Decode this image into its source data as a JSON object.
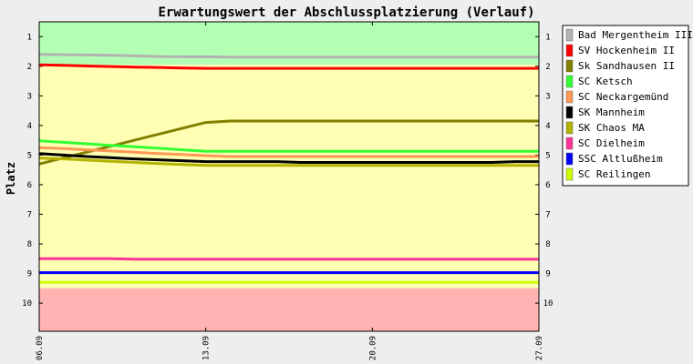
{
  "chart_data": {
    "type": "line",
    "title": "Erwartungswert der Abschlussplatzierung (Verlauf)",
    "ylabel": "Platz",
    "xlabel": "",
    "x_ticks": [
      "06.09",
      "13.09",
      "20.09",
      "27.09"
    ],
    "x": [
      0,
      1,
      2,
      3,
      4,
      5,
      6,
      7,
      8,
      9,
      10,
      11,
      12,
      13,
      14,
      15,
      16,
      17,
      18,
      19,
      20,
      21
    ],
    "y_ticks": [
      1,
      2,
      3,
      4,
      5,
      6,
      7,
      8,
      9,
      10
    ],
    "ylim": [
      0.5,
      10.95
    ],
    "y_inverted": true,
    "bands": [
      {
        "from": 0.5,
        "to": 1.95,
        "color": "#b3ffb3"
      },
      {
        "from": 1.95,
        "to": 9.5,
        "color": "#ffffb3"
      },
      {
        "from": 9.5,
        "to": 10.95,
        "color": "#ffb3b3"
      }
    ],
    "legend_position": "right",
    "series": [
      {
        "name": "Bad Mergentheim III",
        "color": "#b3b3b3",
        "values": [
          1.6,
          1.61,
          1.62,
          1.63,
          1.65,
          1.67,
          1.68,
          1.68,
          1.69,
          1.69,
          1.69,
          1.69,
          1.69,
          1.69,
          1.69,
          1.69,
          1.69,
          1.69,
          1.69,
          1.69,
          1.69,
          1.69
        ]
      },
      {
        "name": "SV Hockenheim II",
        "color": "#ff0000",
        "values": [
          1.95,
          1.97,
          1.99,
          2.01,
          2.03,
          2.04,
          2.06,
          2.07,
          2.07,
          2.07,
          2.07,
          2.07,
          2.07,
          2.07,
          2.07,
          2.07,
          2.07,
          2.07,
          2.07,
          2.07,
          2.07,
          2.07
        ]
      },
      {
        "name": "Sk Sandhausen II",
        "color": "#808000",
        "values": [
          5.3,
          5.1,
          4.9,
          4.7,
          4.5,
          4.3,
          4.1,
          3.9,
          3.85,
          3.85,
          3.85,
          3.85,
          3.85,
          3.85,
          3.85,
          3.85,
          3.85,
          3.85,
          3.85,
          3.85,
          3.85,
          3.85
        ]
      },
      {
        "name": "SC Ketsch",
        "color": "#33ff33",
        "values": [
          4.52,
          4.57,
          4.62,
          4.67,
          4.72,
          4.77,
          4.82,
          4.87,
          4.87,
          4.87,
          4.87,
          4.87,
          4.87,
          4.87,
          4.87,
          4.87,
          4.87,
          4.87,
          4.87,
          4.87,
          4.87,
          4.87
        ]
      },
      {
        "name": "SC Neckargemünd",
        "color": "#ff9955",
        "values": [
          4.75,
          4.78,
          4.82,
          4.86,
          4.9,
          4.95,
          4.98,
          5.02,
          5.05,
          5.05,
          5.05,
          5.05,
          5.05,
          5.05,
          5.05,
          5.05,
          5.05,
          5.05,
          5.05,
          5.05,
          5.05,
          5.05
        ]
      },
      {
        "name": "SK Mannheim",
        "color": "#000000",
        "values": [
          4.95,
          5.0,
          5.05,
          5.09,
          5.13,
          5.16,
          5.19,
          5.22,
          5.22,
          5.22,
          5.22,
          5.25,
          5.25,
          5.25,
          5.25,
          5.25,
          5.25,
          5.25,
          5.25,
          5.25,
          5.22,
          5.22
        ]
      },
      {
        "name": "SK Chaos MA",
        "color": "#b3b300",
        "values": [
          5.1,
          5.13,
          5.17,
          5.21,
          5.25,
          5.29,
          5.32,
          5.35,
          5.35,
          5.35,
          5.35,
          5.35,
          5.35,
          5.35,
          5.35,
          5.35,
          5.35,
          5.35,
          5.35,
          5.35,
          5.35,
          5.35
        ]
      },
      {
        "name": "SC Dielheim",
        "color": "#ff3399",
        "values": [
          8.5,
          8.5,
          8.5,
          8.5,
          8.52,
          8.52,
          8.52,
          8.52,
          8.52,
          8.52,
          8.52,
          8.52,
          8.52,
          8.52,
          8.52,
          8.52,
          8.52,
          8.52,
          8.52,
          8.52,
          8.52,
          8.52
        ]
      },
      {
        "name": "SSC Altlußheim",
        "color": "#0000ff",
        "values": [
          8.97,
          8.97,
          8.97,
          8.97,
          8.97,
          8.97,
          8.97,
          8.97,
          8.97,
          8.97,
          8.97,
          8.97,
          8.97,
          8.97,
          8.97,
          8.97,
          8.97,
          8.97,
          8.97,
          8.97,
          8.97,
          8.97
        ]
      },
      {
        "name": "SC Reilingen",
        "color": "#ccff00",
        "values": [
          9.3,
          9.3,
          9.3,
          9.3,
          9.3,
          9.3,
          9.3,
          9.3,
          9.3,
          9.3,
          9.3,
          9.3,
          9.3,
          9.3,
          9.3,
          9.3,
          9.3,
          9.3,
          9.3,
          9.3,
          9.3,
          9.3
        ]
      }
    ]
  }
}
